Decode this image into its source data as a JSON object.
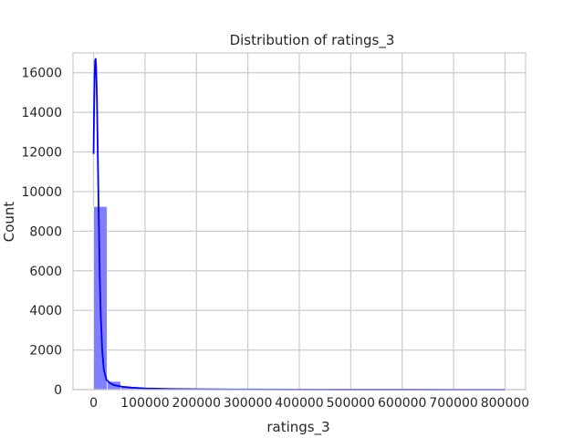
{
  "chart_data": {
    "type": "bar",
    "subtype": "histogram_with_kde",
    "title": "Distribution of ratings_3",
    "xlabel": "ratings_3",
    "ylabel": "Count",
    "xlim": [
      -40000,
      840000
    ],
    "ylim": [
      0,
      17000
    ],
    "xticks": [
      0,
      100000,
      200000,
      300000,
      400000,
      500000,
      600000,
      700000,
      800000
    ],
    "yticks": [
      0,
      2000,
      4000,
      6000,
      8000,
      10000,
      12000,
      14000,
      16000
    ],
    "grid": true,
    "colors": {
      "bar_fill": "#8080ff",
      "bar_edge": "#ffffff",
      "kde_line": "#0000ff",
      "grid": "#cccccc",
      "axes_edge": "#cccccc"
    },
    "bins": [
      {
        "x0": 0,
        "x1": 26500,
        "count": 9250
      },
      {
        "x0": 26500,
        "x1": 53000,
        "count": 420
      },
      {
        "x0": 53000,
        "x1": 79500,
        "count": 150
      },
      {
        "x0": 79500,
        "x1": 106000,
        "count": 75
      },
      {
        "x0": 106000,
        "x1": 132500,
        "count": 45
      },
      {
        "x0": 132500,
        "x1": 159000,
        "count": 30
      },
      {
        "x0": 159000,
        "x1": 185500,
        "count": 20
      },
      {
        "x0": 185500,
        "x1": 212000,
        "count": 15
      },
      {
        "x0": 212000,
        "x1": 238500,
        "count": 10
      },
      {
        "x0": 238500,
        "x1": 265000,
        "count": 8
      },
      {
        "x0": 265000,
        "x1": 291500,
        "count": 6
      },
      {
        "x0": 291500,
        "x1": 318000,
        "count": 5
      },
      {
        "x0": 318000,
        "x1": 344500,
        "count": 4
      },
      {
        "x0": 344500,
        "x1": 371000,
        "count": 3
      },
      {
        "x0": 371000,
        "x1": 397500,
        "count": 3
      },
      {
        "x0": 397500,
        "x1": 424000,
        "count": 2
      },
      {
        "x0": 424000,
        "x1": 450500,
        "count": 2
      },
      {
        "x0": 450500,
        "x1": 477000,
        "count": 2
      },
      {
        "x0": 477000,
        "x1": 503500,
        "count": 1
      },
      {
        "x0": 503500,
        "x1": 530000,
        "count": 1
      },
      {
        "x0": 530000,
        "x1": 556500,
        "count": 1
      },
      {
        "x0": 556500,
        "x1": 583000,
        "count": 1
      },
      {
        "x0": 583000,
        "x1": 609500,
        "count": 1
      },
      {
        "x0": 609500,
        "x1": 636000,
        "count": 0
      },
      {
        "x0": 636000,
        "x1": 662500,
        "count": 1
      },
      {
        "x0": 662500,
        "x1": 689000,
        "count": 0
      },
      {
        "x0": 689000,
        "x1": 715500,
        "count": 0
      },
      {
        "x0": 715500,
        "x1": 742000,
        "count": 0
      },
      {
        "x0": 742000,
        "x1": 768500,
        "count": 0
      },
      {
        "x0": 768500,
        "x1": 795000,
        "count": 1
      }
    ],
    "kde": [
      {
        "x": 0,
        "y": 11900
      },
      {
        "x": 1000,
        "y": 14200
      },
      {
        "x": 2000,
        "y": 15800
      },
      {
        "x": 3000,
        "y": 16600
      },
      {
        "x": 4000,
        "y": 16700
      },
      {
        "x": 5000,
        "y": 16300
      },
      {
        "x": 6500,
        "y": 14700
      },
      {
        "x": 8000,
        "y": 12300
      },
      {
        "x": 10000,
        "y": 8800
      },
      {
        "x": 12000,
        "y": 5800
      },
      {
        "x": 14000,
        "y": 3700
      },
      {
        "x": 17000,
        "y": 1900
      },
      {
        "x": 20000,
        "y": 1000
      },
      {
        "x": 25000,
        "y": 500
      },
      {
        "x": 32000,
        "y": 330
      },
      {
        "x": 40000,
        "y": 230
      },
      {
        "x": 55000,
        "y": 150
      },
      {
        "x": 75000,
        "y": 100
      },
      {
        "x": 100000,
        "y": 65
      },
      {
        "x": 150000,
        "y": 35
      },
      {
        "x": 200000,
        "y": 20
      },
      {
        "x": 300000,
        "y": 10
      },
      {
        "x": 400000,
        "y": 5
      },
      {
        "x": 500000,
        "y": 3
      },
      {
        "x": 600000,
        "y": 2
      },
      {
        "x": 700000,
        "y": 1
      },
      {
        "x": 800000,
        "y": 0
      }
    ]
  }
}
